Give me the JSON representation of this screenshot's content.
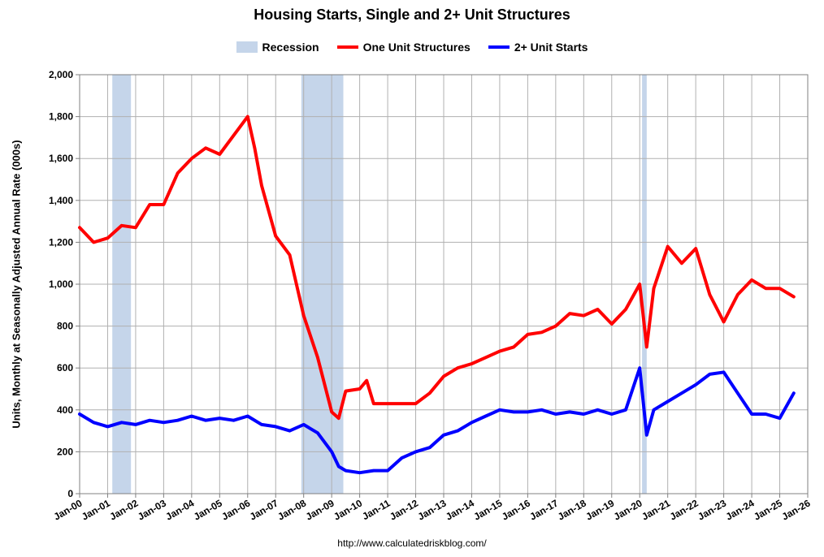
{
  "chart_data": {
    "type": "line",
    "title": "Housing Starts, Single and 2+ Unit Structures",
    "ylabel": "Units, Monthly at Seasonally Adjusted Annual Rate (000s)",
    "xlabel": "",
    "ylim": [
      0,
      2000
    ],
    "yticks": [
      0,
      200,
      400,
      600,
      800,
      1000,
      1200,
      1400,
      1600,
      1800,
      2000
    ],
    "ytick_labels": [
      "0",
      "200",
      "400",
      "600",
      "800",
      "1,000",
      "1,200",
      "1,400",
      "1,600",
      "1,800",
      "2,000"
    ],
    "xlim": [
      "2000-01",
      "2026-01"
    ],
    "xtick_labels": [
      "Jan-00",
      "Jan-01",
      "Jan-02",
      "Jan-03",
      "Jan-04",
      "Jan-05",
      "Jan-06",
      "Jan-07",
      "Jan-08",
      "Jan-09",
      "Jan-10",
      "Jan-11",
      "Jan-12",
      "Jan-13",
      "Jan-14",
      "Jan-15",
      "Jan-16",
      "Jan-17",
      "Jan-18",
      "Jan-19",
      "Jan-20",
      "Jan-21",
      "Jan-22",
      "Jan-23",
      "Jan-24",
      "Jan-25",
      "Jan-26"
    ],
    "grid": true,
    "legend_position": "top-center",
    "recessions": [
      {
        "start": "2001-03",
        "end": "2001-11"
      },
      {
        "start": "2007-12",
        "end": "2009-06"
      },
      {
        "start": "2020-02",
        "end": "2020-04"
      }
    ],
    "series": [
      {
        "name": "One Unit Structures",
        "color": "#ff0000",
        "x": [
          "2000-01",
          "2000-07",
          "2001-01",
          "2001-07",
          "2002-01",
          "2002-07",
          "2003-01",
          "2003-07",
          "2004-01",
          "2004-07",
          "2005-01",
          "2005-07",
          "2006-01",
          "2006-04",
          "2006-07",
          "2007-01",
          "2007-07",
          "2008-01",
          "2008-07",
          "2009-01",
          "2009-04",
          "2009-07",
          "2010-01",
          "2010-04",
          "2010-07",
          "2011-01",
          "2011-07",
          "2012-01",
          "2012-07",
          "2013-01",
          "2013-07",
          "2014-01",
          "2014-07",
          "2015-01",
          "2015-07",
          "2016-01",
          "2016-07",
          "2017-01",
          "2017-07",
          "2018-01",
          "2018-07",
          "2019-01",
          "2019-07",
          "2020-01",
          "2020-04",
          "2020-07",
          "2021-01",
          "2021-07",
          "2022-01",
          "2022-07",
          "2023-01",
          "2023-07",
          "2024-01",
          "2024-07",
          "2025-01",
          "2025-07"
        ],
        "values": [
          1270,
          1200,
          1220,
          1280,
          1270,
          1380,
          1380,
          1530,
          1600,
          1650,
          1620,
          1710,
          1800,
          1650,
          1470,
          1230,
          1140,
          850,
          650,
          390,
          360,
          490,
          500,
          540,
          430,
          430,
          430,
          430,
          480,
          560,
          600,
          620,
          650,
          680,
          700,
          760,
          770,
          800,
          860,
          850,
          880,
          810,
          880,
          1000,
          700,
          980,
          1180,
          1100,
          1170,
          950,
          820,
          950,
          1020,
          980,
          980,
          940
        ]
      },
      {
        "name": "2+ Unit Starts",
        "color": "#0000ff",
        "x": [
          "2000-01",
          "2000-07",
          "2001-01",
          "2001-07",
          "2002-01",
          "2002-07",
          "2003-01",
          "2003-07",
          "2004-01",
          "2004-07",
          "2005-01",
          "2005-07",
          "2006-01",
          "2006-07",
          "2007-01",
          "2007-07",
          "2008-01",
          "2008-07",
          "2009-01",
          "2009-04",
          "2009-07",
          "2010-01",
          "2010-07",
          "2011-01",
          "2011-07",
          "2012-01",
          "2012-07",
          "2013-01",
          "2013-07",
          "2014-01",
          "2014-07",
          "2015-01",
          "2015-07",
          "2016-01",
          "2016-07",
          "2017-01",
          "2017-07",
          "2018-01",
          "2018-07",
          "2019-01",
          "2019-07",
          "2020-01",
          "2020-04",
          "2020-07",
          "2021-01",
          "2021-07",
          "2022-01",
          "2022-07",
          "2023-01",
          "2023-07",
          "2024-01",
          "2024-07",
          "2025-01",
          "2025-07"
        ],
        "values": [
          380,
          340,
          320,
          340,
          330,
          350,
          340,
          350,
          370,
          350,
          360,
          350,
          370,
          330,
          320,
          300,
          330,
          290,
          200,
          130,
          110,
          100,
          110,
          110,
          170,
          200,
          220,
          280,
          300,
          340,
          370,
          400,
          390,
          390,
          400,
          380,
          390,
          380,
          400,
          380,
          400,
          600,
          280,
          400,
          440,
          480,
          520,
          570,
          580,
          480,
          380,
          380,
          360,
          480
        ]
      }
    ]
  },
  "legend": {
    "recession_label": "Recession",
    "recession_color": "#c5d5ea",
    "one_unit_label": "One Unit Structures",
    "two_plus_label": "2+ Unit Starts"
  },
  "source": "http://www.calculatedriskblog.com/"
}
